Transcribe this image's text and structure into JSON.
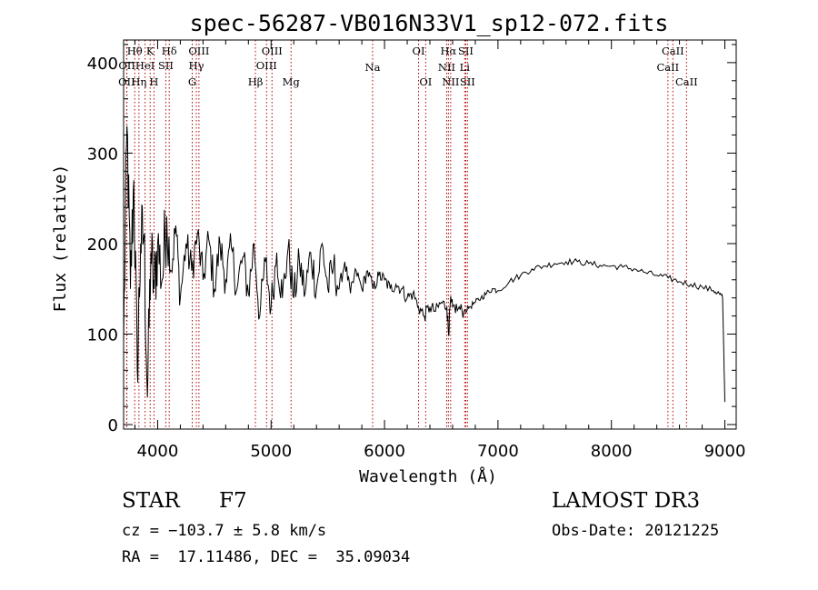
{
  "chart_data": {
    "type": "line",
    "title": "spec-56287-VB016N33V1_sp12-072.fits",
    "xlabel": "Wavelength (Å)",
    "ylabel": "Flux (relative)",
    "xlim": [
      3700,
      9100
    ],
    "ylim": [
      -5,
      425
    ],
    "xticks": [
      4000,
      5000,
      6000,
      7000,
      8000,
      9000
    ],
    "yticks": [
      0,
      100,
      200,
      300,
      400
    ],
    "grid": false,
    "series": [
      {
        "name": "flux",
        "color": "#000000",
        "x": [
          3700,
          3730,
          3760,
          3790,
          3820,
          3850,
          3880,
          3910,
          3940,
          3970,
          4000,
          4040,
          4080,
          4120,
          4160,
          4200,
          4250,
          4300,
          4350,
          4400,
          4450,
          4500,
          4550,
          4600,
          4650,
          4700,
          4750,
          4800,
          4850,
          4900,
          4950,
          5000,
          5050,
          5100,
          5150,
          5200,
          5250,
          5300,
          5350,
          5400,
          5450,
          5500,
          5550,
          5600,
          5650,
          5700,
          5750,
          5800,
          5850,
          5900,
          5950,
          6000,
          6050,
          6100,
          6150,
          6200,
          6250,
          6300,
          6350,
          6400,
          6450,
          6500,
          6550,
          6565,
          6580,
          6600,
          6650,
          6700,
          6750,
          6800,
          6850,
          6900,
          6950,
          7000,
          7100,
          7200,
          7300,
          7400,
          7500,
          7600,
          7700,
          7800,
          7900,
          8000,
          8100,
          8200,
          8300,
          8400,
          8500,
          8600,
          8700,
          8800,
          8900,
          8950,
          8980,
          9000
        ],
        "values": [
          90,
          330,
          150,
          270,
          60,
          200,
          210,
          30,
          190,
          150,
          200,
          160,
          230,
          170,
          220,
          140,
          200,
          170,
          210,
          160,
          205,
          150,
          200,
          160,
          195,
          150,
          185,
          145,
          200,
          120,
          180,
          130,
          190,
          140,
          195,
          140,
          180,
          145,
          190,
          150,
          200,
          150,
          175,
          150,
          180,
          145,
          170,
          150,
          170,
          150,
          165,
          160,
          150,
          155,
          150,
          140,
          145,
          130,
          120,
          130,
          125,
          135,
          130,
          100,
          135,
          130,
          128,
          125,
          130,
          135,
          140,
          145,
          150,
          148,
          158,
          165,
          172,
          175,
          178,
          180,
          180,
          178,
          176,
          175,
          174,
          172,
          168,
          165,
          162,
          158,
          155,
          152,
          148,
          145,
          140,
          25
        ]
      }
    ],
    "line_markers": [
      {
        "label": "OII",
        "x": 3727,
        "row": 3
      },
      {
        "label": "OII",
        "x": 3729,
        "row": 1
      },
      {
        "label": "Hθ",
        "x": 3798,
        "row": 0
      },
      {
        "label": "Hη",
        "x": 3835,
        "row": 3
      },
      {
        "label": "HeI",
        "x": 3889,
        "row": 1
      },
      {
        "label": "K",
        "x": 3934,
        "row": 0
      },
      {
        "label": "H",
        "x": 3968,
        "row": 3
      },
      {
        "label": "SII",
        "x": 4072,
        "row": 1
      },
      {
        "label": "Hδ",
        "x": 4102,
        "row": 0
      },
      {
        "label": "G",
        "x": 4305,
        "row": 3
      },
      {
        "label": "Hγ",
        "x": 4341,
        "row": 1
      },
      {
        "label": "OIII",
        "x": 4364,
        "row": 0
      },
      {
        "label": "Hβ",
        "x": 4862,
        "row": 3
      },
      {
        "label": "OIII",
        "x": 4960,
        "row": 1
      },
      {
        "label": "OIII",
        "x": 5008,
        "row": 0
      },
      {
        "label": "Mg",
        "x": 5176,
        "row": 3
      },
      {
        "label": "Na",
        "x": 5895,
        "row": 2
      },
      {
        "label": "OI",
        "x": 6300,
        "row": 0
      },
      {
        "label": "OI",
        "x": 6363,
        "row": 3
      },
      {
        "label": "NII",
        "x": 6548,
        "row": 2
      },
      {
        "label": "Hα",
        "x": 6563,
        "row": 0
      },
      {
        "label": "NII",
        "x": 6583,
        "row": 3
      },
      {
        "label": "SII",
        "x": 6716,
        "row": 0
      },
      {
        "label": "Li",
        "x": 6707,
        "row": 2
      },
      {
        "label": "SII",
        "x": 6731,
        "row": 3
      },
      {
        "label": "CaII",
        "x": 8498,
        "row": 2
      },
      {
        "label": "CaII",
        "x": 8542,
        "row": 0
      },
      {
        "label": "CaII",
        "x": 8662,
        "row": 3
      }
    ],
    "annotations": {
      "object_class": "STAR",
      "subclass": "F7",
      "survey": "LAMOST DR3",
      "redshift_line": "cz = −103.7 ± 5.8 km/s",
      "obs_date_line": "Obs-Date: 20121225",
      "coords_line": "RA =  17.11486, DEC =  35.09034"
    }
  }
}
